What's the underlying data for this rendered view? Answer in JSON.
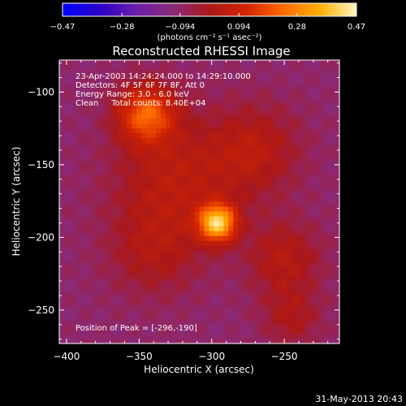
{
  "chart_data": {
    "type": "heatmap",
    "title": "Reconstructed RHESSI Image",
    "xlabel": "Heliocentric X (arcsec)",
    "ylabel": "Heliocentric Y (arcsec)",
    "xlim": [
      -405,
      -212
    ],
    "ylim": [
      -273,
      -78
    ],
    "x_ticks": [
      -400,
      -350,
      -300,
      -250
    ],
    "y_ticks": [
      -100,
      -150,
      -200,
      -250
    ],
    "x_tick_labels": [
      "−400",
      "−350",
      "−300",
      "−250"
    ],
    "y_tick_labels": [
      "−100",
      "−150",
      "−200",
      "−250"
    ],
    "colorbar": {
      "min": -0.47,
      "max": 0.47,
      "ticks": [
        -0.47,
        -0.28,
        -0.094,
        0.094,
        0.28,
        0.47
      ],
      "tick_labels": [
        "−0.47",
        "−0.28",
        "−0.094",
        "0.094",
        "0.28",
        "0.47"
      ],
      "unit_label": "(photons cm⁻² s⁻¹ asec⁻²)",
      "colors": [
        "#0000ff",
        "#2a00c8",
        "#6a1ea8",
        "#8a2a7a",
        "#aa1818",
        "#d32400",
        "#ff6a00",
        "#ffb000",
        "#fff7c0"
      ]
    },
    "annotations": [
      "23-Apr-2003 14:24:24.000 to 14:29:10.000",
      "Detectors: 4F 5F 6F 7F 8F, Att 0",
      "Energy Range: 3.0 - 6.0 keV",
      "Clean     Total counts: 8.40E+04"
    ],
    "peak_label": "Position of Peak = [-296,-190]",
    "peak": {
      "x": -296,
      "y": -190,
      "value": 0.47
    },
    "sources": [
      {
        "x": -296,
        "y": -190,
        "value": 0.47,
        "sigma": 9
      },
      {
        "x": -345,
        "y": -115,
        "value": 0.3,
        "sigma": 14
      },
      {
        "x": -325,
        "y": -160,
        "value": 0.14,
        "sigma": 30
      },
      {
        "x": -270,
        "y": -140,
        "value": 0.13,
        "sigma": 22
      },
      {
        "x": -250,
        "y": -215,
        "value": 0.13,
        "sigma": 18
      },
      {
        "x": -245,
        "y": -255,
        "value": 0.1,
        "sigma": 14
      },
      {
        "x": -340,
        "y": -210,
        "value": 0.1,
        "sigma": 22
      }
    ],
    "background_value": -0.1
  },
  "footer": {
    "timestamp": "31-May-2013 20:43"
  }
}
